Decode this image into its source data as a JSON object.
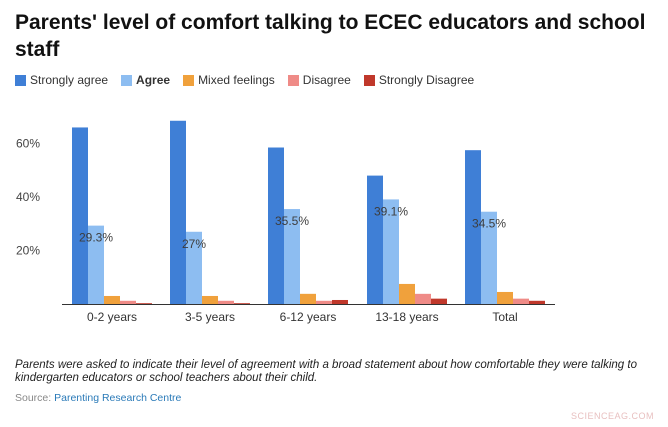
{
  "chart_data": {
    "type": "bar",
    "title": "Parents' level of comfort talking to ECEC educators and school staff",
    "categories": [
      "0-2 years",
      "3-5 years",
      "6-12 years",
      "13-18 years",
      "Total"
    ],
    "series": [
      {
        "name": "Strongly agree",
        "color": "#3f7fd6",
        "values": [
          66,
          68.5,
          58.5,
          48,
          57.5
        ]
      },
      {
        "name": "Agree",
        "color": "#8dbdf1",
        "values": [
          29.3,
          27,
          35.5,
          39.1,
          34.5
        ]
      },
      {
        "name": "Mixed feelings",
        "color": "#f0a13c",
        "values": [
          3,
          3,
          3.8,
          7.5,
          4.5
        ]
      },
      {
        "name": "Disagree",
        "color": "#ef8b87",
        "values": [
          1.2,
          1.2,
          1.2,
          3.8,
          2
        ]
      },
      {
        "name": "Strongly Disagree",
        "color": "#c0382b",
        "values": [
          0.3,
          0.3,
          1.5,
          2,
          1.2
        ]
      }
    ],
    "data_labels": [
      {
        "category": "0-2 years",
        "series": "Agree",
        "text": "29.3%"
      },
      {
        "category": "3-5 years",
        "series": "Agree",
        "text": "27%"
      },
      {
        "category": "6-12 years",
        "series": "Agree",
        "text": "35.5%"
      },
      {
        "category": "13-18 years",
        "series": "Agree",
        "text": "39.1%"
      },
      {
        "category": "Total",
        "series": "Agree",
        "text": "34.5%"
      }
    ],
    "y_ticks": [
      {
        "value": 20,
        "label": "20%"
      },
      {
        "value": 40,
        "label": "40%"
      },
      {
        "value": 60,
        "label": "60%"
      }
    ],
    "ylim": [
      0,
      75
    ],
    "xlabel": "",
    "ylabel": "",
    "grid": false,
    "legend_position": "top-left"
  },
  "note": "Parents were asked to indicate their level of agreement with a broad statement about how comfortable they were talking to kindergarten educators or school teachers about their child.",
  "source": {
    "label": "Source:",
    "name": "Parenting Research Centre"
  },
  "watermark": "SCIENCEAG.COM"
}
